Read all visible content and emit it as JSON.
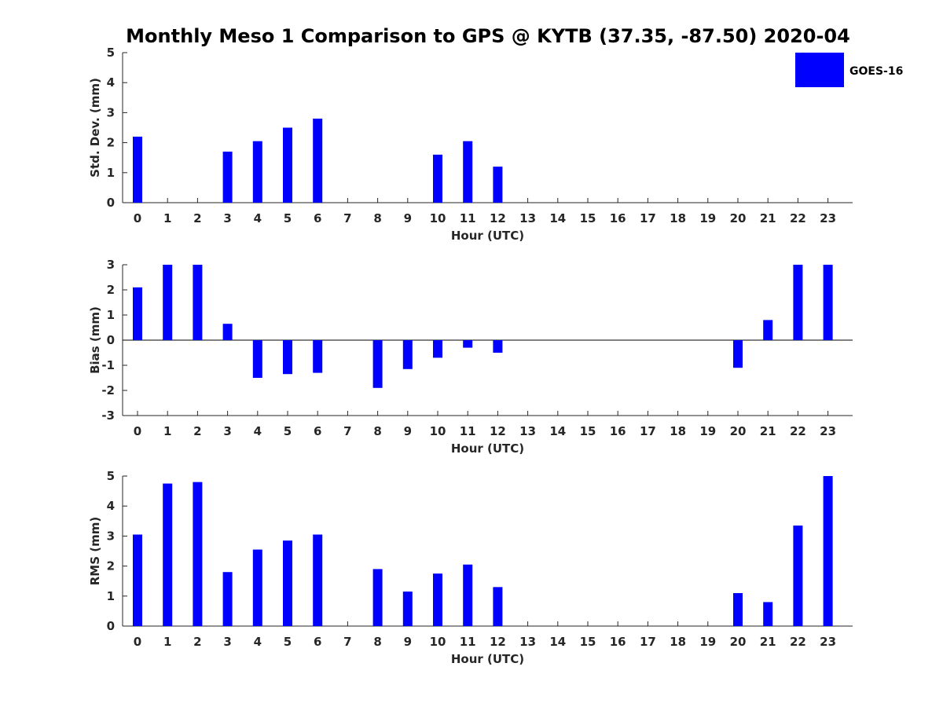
{
  "title": "Monthly Meso 1 Comparison to GPS @ KYTB (37.35, -87.50) 2020-04",
  "legend": {
    "label": "GOES-16",
    "color": "#0000ff"
  },
  "chart_data": [
    {
      "type": "bar",
      "name": "std-dev",
      "ylabel": "Std. Dev. (mm)",
      "xlabel": "Hour (UTC)",
      "ylim": [
        0,
        5
      ],
      "yticks": [
        0,
        1,
        2,
        3,
        4,
        5
      ],
      "categories": [
        "0",
        "1",
        "2",
        "3",
        "4",
        "5",
        "6",
        "7",
        "8",
        "9",
        "10",
        "11",
        "12",
        "13",
        "14",
        "15",
        "16",
        "17",
        "18",
        "19",
        "20",
        "21",
        "22",
        "23"
      ],
      "values": [
        2.2,
        null,
        null,
        1.7,
        2.05,
        2.5,
        2.8,
        null,
        null,
        null,
        1.6,
        2.05,
        1.2,
        null,
        null,
        null,
        null,
        null,
        null,
        null,
        null,
        null,
        null,
        null
      ]
    },
    {
      "type": "bar",
      "name": "bias",
      "ylabel": "Bias (mm)",
      "xlabel": "Hour (UTC)",
      "ylim": [
        -3,
        3
      ],
      "yticks": [
        -3,
        -2,
        -1,
        0,
        1,
        2,
        3
      ],
      "categories": [
        "0",
        "1",
        "2",
        "3",
        "4",
        "5",
        "6",
        "7",
        "8",
        "9",
        "10",
        "11",
        "12",
        "13",
        "14",
        "15",
        "16",
        "17",
        "18",
        "19",
        "20",
        "21",
        "22",
        "23"
      ],
      "values": [
        2.1,
        3,
        3,
        0.65,
        -1.5,
        -1.35,
        -1.3,
        null,
        -1.9,
        -1.15,
        -0.7,
        -0.3,
        -0.5,
        null,
        null,
        null,
        null,
        null,
        null,
        null,
        -1.1,
        0.8,
        3,
        3
      ]
    },
    {
      "type": "bar",
      "name": "rms",
      "ylabel": "RMS (mm)",
      "xlabel": "Hour (UTC)",
      "ylim": [
        0,
        5
      ],
      "yticks": [
        0,
        1,
        2,
        3,
        4,
        5
      ],
      "categories": [
        "0",
        "1",
        "2",
        "3",
        "4",
        "5",
        "6",
        "7",
        "8",
        "9",
        "10",
        "11",
        "12",
        "13",
        "14",
        "15",
        "16",
        "17",
        "18",
        "19",
        "20",
        "21",
        "22",
        "23"
      ],
      "values": [
        3.05,
        4.75,
        4.8,
        1.8,
        2.55,
        2.85,
        3.05,
        null,
        1.9,
        1.15,
        1.75,
        2.05,
        1.3,
        null,
        null,
        null,
        null,
        null,
        null,
        null,
        1.1,
        0.8,
        3.35,
        5
      ]
    }
  ]
}
